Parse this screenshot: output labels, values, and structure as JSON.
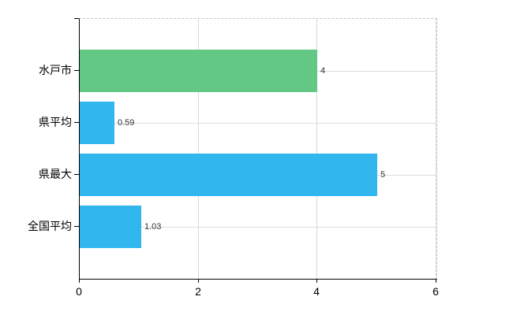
{
  "chart_data": {
    "type": "bar",
    "orientation": "horizontal",
    "title": "",
    "xlabel": "",
    "ylabel": "",
    "categories": [
      "水戸市",
      "県平均",
      "県最大",
      "全国平均"
    ],
    "values": [
      4,
      0.59,
      5,
      1.03
    ],
    "value_labels": [
      "4",
      "0.59",
      "5",
      "1.03"
    ],
    "bar_colors": [
      "#63c884",
      "#31b6ee",
      "#31b6ee",
      "#31b6ee"
    ],
    "xlim": [
      0,
      6
    ],
    "x_ticks": [
      0,
      2,
      4,
      6
    ],
    "x_tick_labels": [
      "0",
      "2",
      "4",
      "6"
    ],
    "grid": true,
    "legend": false,
    "plot_border": {
      "left_bottom_style": "solid black axes",
      "top_right_style": "dashed light gray"
    }
  },
  "colors": {
    "background": "#ffffff",
    "axis": "#000000",
    "gridline": "#d9d9d9",
    "dashed_border": "#c8c8c8",
    "green_bar": "#63c884",
    "blue_bar": "#31b6ee",
    "value_label_text": "#333333",
    "tick_label_text": "#000000"
  }
}
